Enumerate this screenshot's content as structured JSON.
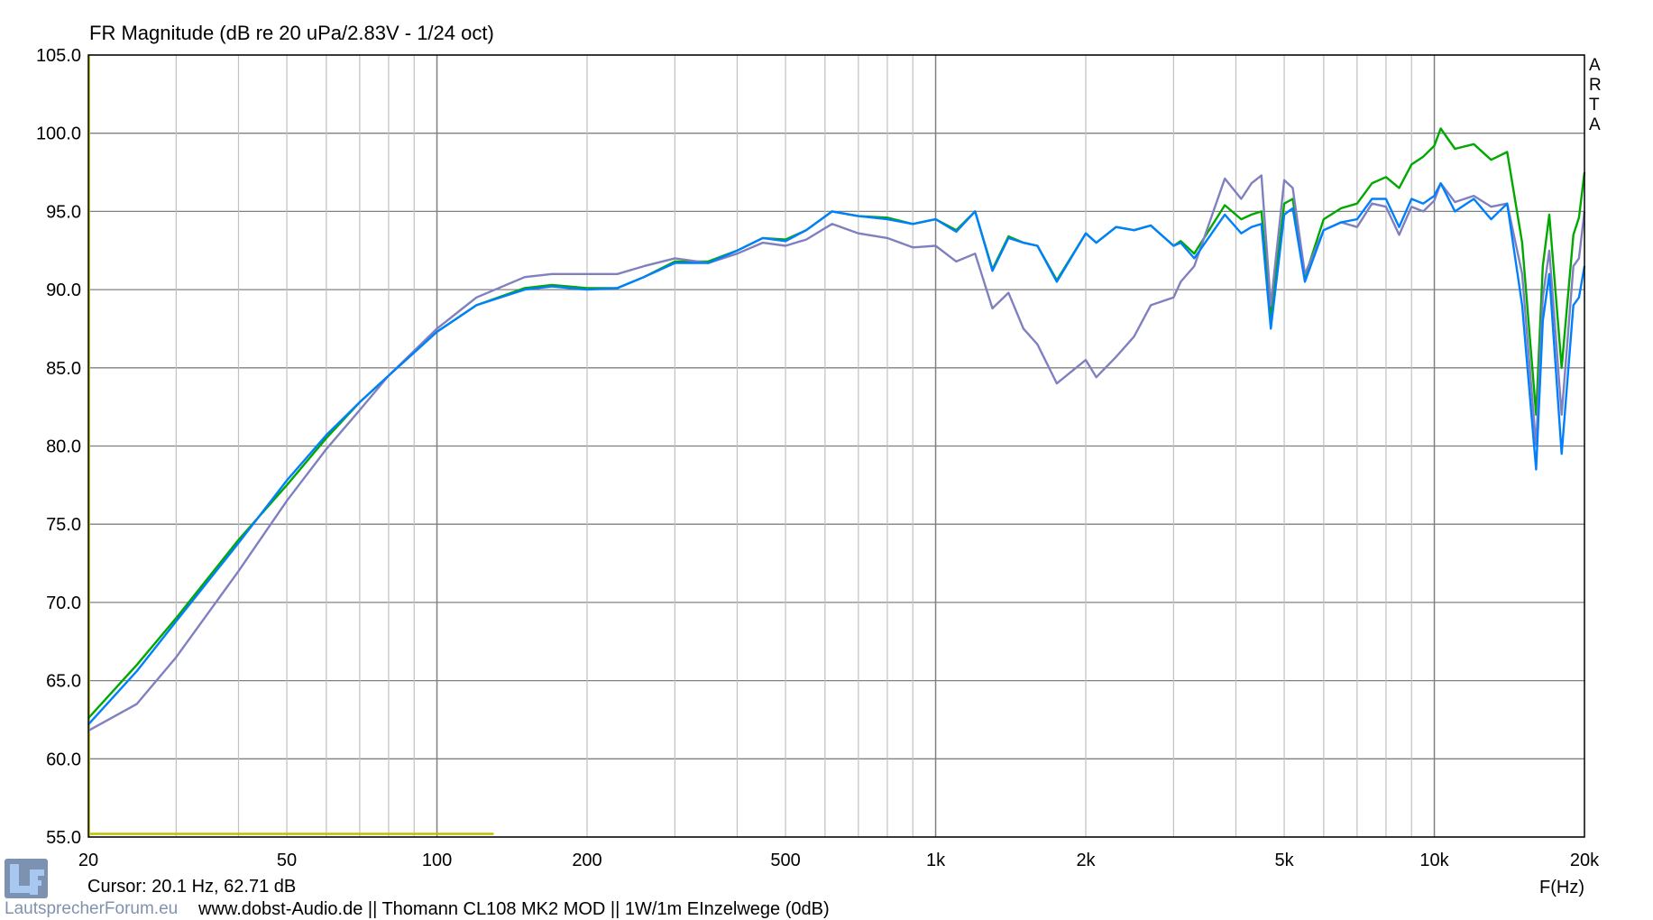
{
  "chart_data": {
    "type": "line",
    "title": "FR Magnitude (dB re 20 uPa/2.83V - 1/24 oct)",
    "xlabel": "F(Hz)",
    "ylabel": "",
    "xscale": "log",
    "xlim": [
      20,
      20000
    ],
    "ylim": [
      55,
      105
    ],
    "grid": true,
    "yticks": [
      "55.0",
      "60.0",
      "65.0",
      "70.0",
      "75.0",
      "80.0",
      "85.0",
      "90.0",
      "95.0",
      "100.0",
      "105.0"
    ],
    "xticks": [
      {
        "value": 20,
        "label": "20"
      },
      {
        "value": 50,
        "label": "50"
      },
      {
        "value": 100,
        "label": "100"
      },
      {
        "value": 200,
        "label": "200"
      },
      {
        "value": 500,
        "label": "500"
      },
      {
        "value": 1000,
        "label": "1k"
      },
      {
        "value": 2000,
        "label": "2k"
      },
      {
        "value": 5000,
        "label": "5k"
      },
      {
        "value": 10000,
        "label": "10k"
      },
      {
        "value": 20000,
        "label": "20k"
      }
    ],
    "x": [
      20,
      25,
      30,
      40,
      50,
      60,
      70,
      80,
      100,
      120,
      150,
      170,
      200,
      230,
      260,
      300,
      350,
      400,
      450,
      500,
      550,
      620,
      700,
      800,
      900,
      1000,
      1100,
      1200,
      1300,
      1400,
      1500,
      1600,
      1750,
      2000,
      2100,
      2300,
      2500,
      2700,
      3000,
      3100,
      3300,
      3800,
      4100,
      4300,
      4500,
      4700,
      5000,
      5200,
      5500,
      6000,
      6500,
      7000,
      7500,
      8000,
      8500,
      9000,
      9500,
      10000,
      10300,
      11000,
      12000,
      13000,
      14000,
      15000,
      16000,
      16500,
      17000,
      18000,
      19000,
      19500,
      20000
    ],
    "series": [
      {
        "color": "#00a800",
        "values": [
          62.6,
          66,
          69,
          74,
          77.5,
          80.5,
          82.8,
          84.5,
          87.3,
          89,
          90.1,
          90.3,
          90.1,
          90.1,
          90.8,
          91.8,
          91.8,
          92.5,
          93.3,
          93.2,
          93.8,
          95.0,
          94.7,
          94.6,
          94.2,
          94.5,
          93.8,
          95.0,
          91.3,
          93.4,
          93.0,
          92.8,
          90.6,
          93.6,
          93.0,
          94.0,
          93.8,
          94.1,
          92.8,
          93.1,
          92.3,
          95.4,
          94.5,
          94.8,
          95.0,
          88.2,
          95.5,
          95.8,
          90.8,
          94.5,
          95.2,
          95.5,
          96.8,
          97.2,
          96.5,
          98.0,
          98.5,
          99.2,
          100.3,
          99.0,
          99.3,
          98.3,
          98.8,
          93,
          82,
          91.5,
          94.8,
          85,
          93.5,
          94.6,
          97.5
        ]
      },
      {
        "color": "#8080c0",
        "values": [
          61.8,
          63.5,
          66.5,
          72,
          76.5,
          79.8,
          82.3,
          84.5,
          87.5,
          89.5,
          90.8,
          91.0,
          91.0,
          91.0,
          91.5,
          92.0,
          91.7,
          92.3,
          93.0,
          92.8,
          93.2,
          94.2,
          93.6,
          93.3,
          92.7,
          92.8,
          91.8,
          92.3,
          88.8,
          89.8,
          87.5,
          86.5,
          84.0,
          85.5,
          84.4,
          85.7,
          87.0,
          89.0,
          89.5,
          90.5,
          91.5,
          97.1,
          95.8,
          96.8,
          97.3,
          89.0,
          97.0,
          96.5,
          91.0,
          93.8,
          94.3,
          94.0,
          95.5,
          95.3,
          93.5,
          95.3,
          95.0,
          95.7,
          96.8,
          95.6,
          96.0,
          95.3,
          95.5,
          91,
          80,
          89.5,
          92.5,
          82,
          91.5,
          92,
          95
        ]
      },
      {
        "color": "#0080ff",
        "values": [
          62.2,
          65.6,
          68.8,
          73.8,
          77.8,
          80.7,
          82.8,
          84.5,
          87.3,
          89,
          90.0,
          90.2,
          90.0,
          90.1,
          90.8,
          91.7,
          91.7,
          92.5,
          93.3,
          93.1,
          93.8,
          95.0,
          94.7,
          94.5,
          94.2,
          94.5,
          93.7,
          95.0,
          91.2,
          93.3,
          93.0,
          92.8,
          90.5,
          93.6,
          93.0,
          94.0,
          93.8,
          94.1,
          92.8,
          93.0,
          92.0,
          94.8,
          93.6,
          94.0,
          94.2,
          87.5,
          94.8,
          95.2,
          90.5,
          93.8,
          94.3,
          94.5,
          95.8,
          95.8,
          94.0,
          95.8,
          95.5,
          96.0,
          96.8,
          95.0,
          95.8,
          94.5,
          95.5,
          89,
          78.5,
          88,
          91,
          79.5,
          89,
          89.5,
          91.5
        ]
      },
      {
        "color": "#c0c000",
        "x": [
          20,
          130
        ],
        "values": [
          55.2,
          55.2
        ]
      }
    ],
    "cursor": {
      "freq": 20.1,
      "color": "#c0c000"
    }
  },
  "side_label": "ARTA",
  "cursor_readout": "Cursor: 20.1 Hz, 62.71 dB",
  "footer": "www.dobst-Audio.de  ||  Thomann CL108 MK2 MOD  ||  1W/1m  EInzelwege  (0dB)",
  "watermark": "LautsprecherForum.eu",
  "logo_text": "LF"
}
